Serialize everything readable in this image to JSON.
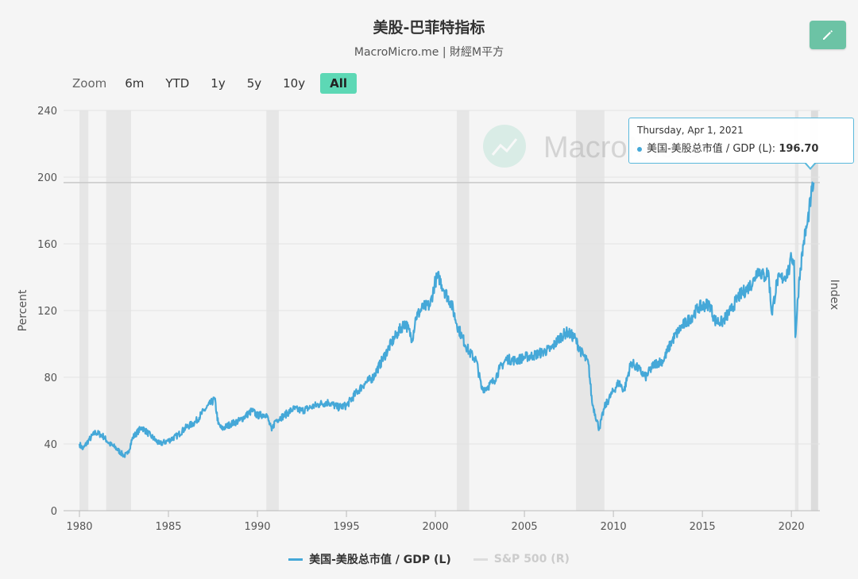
{
  "title": "美股-巴菲特指标",
  "subtitle": "MacroMicro.me | 財經M平方",
  "watermark": "MacroMicro",
  "zoom": {
    "label": "Zoom",
    "buttons": [
      "6m",
      "YTD",
      "1y",
      "5y",
      "10y",
      "All"
    ],
    "active": "All"
  },
  "tooltip": {
    "date": "Thursday, Apr 1, 2021",
    "series": "美国-美股总市值 / GDP (L):",
    "value": "196.70"
  },
  "legend": [
    {
      "name": "美国-美股总市值 / GDP (L)",
      "color": "#45a8d8",
      "visible": true
    },
    {
      "name": "S&P 500 (R)",
      "color": "#cccccc",
      "visible": false
    }
  ],
  "colors": {
    "series": "#45a8d8",
    "recession": "#e6e6e6",
    "accent": "#5dd8b5"
  },
  "icons": {
    "edit": "pencil-icon"
  },
  "chart_data": {
    "type": "line",
    "ylabel": "Percent",
    "y2label": "Index",
    "ylim": [
      0,
      240
    ],
    "yticks": [
      0,
      40,
      80,
      120,
      160,
      200,
      240
    ],
    "xlim": [
      1980,
      2021.6
    ],
    "xticks": [
      1980,
      1985,
      1990,
      1995,
      2000,
      2005,
      2010,
      2015,
      2020
    ],
    "recessions": [
      [
        1980.0,
        1980.5
      ],
      [
        1981.5,
        1982.9
      ],
      [
        1990.5,
        1991.2
      ],
      [
        2001.2,
        2001.9
      ],
      [
        2007.9,
        2009.5
      ],
      [
        2020.2,
        2020.4
      ]
    ],
    "highlight_band": [
      2021.1,
      2021.5
    ],
    "reference_line": 196.7,
    "series": [
      {
        "name": "美国-美股总市值 / GDP (L)",
        "points": [
          [
            1980.0,
            40
          ],
          [
            1980.2,
            37
          ],
          [
            1980.5,
            42
          ],
          [
            1980.9,
            47
          ],
          [
            1981.3,
            45
          ],
          [
            1981.7,
            40
          ],
          [
            1982.0,
            38
          ],
          [
            1982.5,
            33
          ],
          [
            1982.7,
            34
          ],
          [
            1983.0,
            44
          ],
          [
            1983.5,
            50
          ],
          [
            1984.0,
            45
          ],
          [
            1984.5,
            40
          ],
          [
            1985.0,
            42
          ],
          [
            1985.5,
            45
          ],
          [
            1986.0,
            50
          ],
          [
            1986.5,
            53
          ],
          [
            1987.0,
            60
          ],
          [
            1987.6,
            67
          ],
          [
            1987.8,
            52
          ],
          [
            1988.0,
            49
          ],
          [
            1988.5,
            52
          ],
          [
            1989.0,
            54
          ],
          [
            1989.7,
            60
          ],
          [
            1990.0,
            57
          ],
          [
            1990.5,
            58
          ],
          [
            1990.8,
            48
          ],
          [
            1991.0,
            54
          ],
          [
            1991.5,
            57
          ],
          [
            1992.0,
            61
          ],
          [
            1992.5,
            60
          ],
          [
            1993.0,
            62
          ],
          [
            1993.5,
            64
          ],
          [
            1994.0,
            65
          ],
          [
            1994.5,
            62
          ],
          [
            1995.0,
            63
          ],
          [
            1995.5,
            70
          ],
          [
            1996.0,
            76
          ],
          [
            1996.5,
            80
          ],
          [
            1997.0,
            90
          ],
          [
            1997.5,
            100
          ],
          [
            1997.9,
            107
          ],
          [
            1998.3,
            113
          ],
          [
            1998.7,
            103
          ],
          [
            1998.9,
            116
          ],
          [
            1999.3,
            122
          ],
          [
            1999.7,
            123
          ],
          [
            2000.0,
            138
          ],
          [
            2000.2,
            140
          ],
          [
            2000.5,
            132
          ],
          [
            2000.9,
            124
          ],
          [
            2001.2,
            112
          ],
          [
            2001.5,
            104
          ],
          [
            2001.9,
            95
          ],
          [
            2002.3,
            90
          ],
          [
            2002.6,
            73
          ],
          [
            2002.9,
            74
          ],
          [
            2003.3,
            78
          ],
          [
            2003.6,
            85
          ],
          [
            2004.0,
            91
          ],
          [
            2004.5,
            90
          ],
          [
            2005.0,
            92
          ],
          [
            2005.5,
            93
          ],
          [
            2006.0,
            95
          ],
          [
            2006.5,
            97
          ],
          [
            2007.0,
            104
          ],
          [
            2007.4,
            107
          ],
          [
            2007.8,
            104
          ],
          [
            2008.2,
            95
          ],
          [
            2008.6,
            88
          ],
          [
            2008.8,
            65
          ],
          [
            2009.2,
            49
          ],
          [
            2009.5,
            62
          ],
          [
            2009.9,
            70
          ],
          [
            2010.3,
            77
          ],
          [
            2010.6,
            72
          ],
          [
            2011.0,
            89
          ],
          [
            2011.5,
            84
          ],
          [
            2011.8,
            80
          ],
          [
            2012.3,
            88
          ],
          [
            2012.8,
            90
          ],
          [
            2013.3,
            102
          ],
          [
            2013.8,
            110
          ],
          [
            2014.3,
            115
          ],
          [
            2014.8,
            122
          ],
          [
            2015.4,
            124
          ],
          [
            2015.7,
            114
          ],
          [
            2016.1,
            113
          ],
          [
            2016.6,
            120
          ],
          [
            2017.0,
            128
          ],
          [
            2017.5,
            133
          ],
          [
            2017.9,
            138
          ],
          [
            2018.1,
            145
          ],
          [
            2018.5,
            140
          ],
          [
            2018.7,
            144
          ],
          [
            2018.9,
            118
          ],
          [
            2019.2,
            138
          ],
          [
            2019.6,
            140
          ],
          [
            2019.9,
            145
          ],
          [
            2020.0,
            152
          ],
          [
            2020.15,
            150
          ],
          [
            2020.22,
            104
          ],
          [
            2020.45,
            140
          ],
          [
            2020.7,
            162
          ],
          [
            2020.9,
            172
          ],
          [
            2021.1,
            188
          ],
          [
            2021.25,
            196.7
          ]
        ]
      }
    ]
  }
}
